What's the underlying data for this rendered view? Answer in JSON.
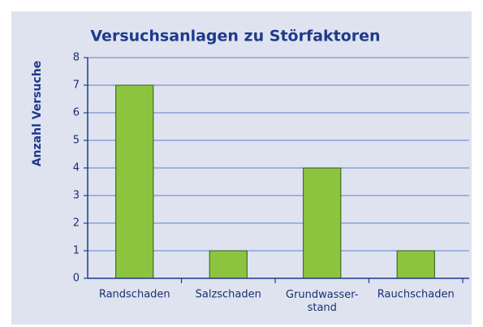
{
  "chart_data": {
    "type": "bar",
    "title": "Versuchsanlagen zu Störfaktoren",
    "y_label": "Anzahl Versuche",
    "categories": [
      "Randschaden",
      "Salzschaden",
      "Grundwasser-\nstand",
      "Rauchschaden"
    ],
    "values": [
      7,
      1,
      4,
      1
    ],
    "color": "#8cc43f",
    "ylim": [
      0,
      8
    ],
    "yticks": [
      0,
      1,
      2,
      3,
      4,
      5,
      6,
      7,
      8
    ],
    "grid": true
  }
}
